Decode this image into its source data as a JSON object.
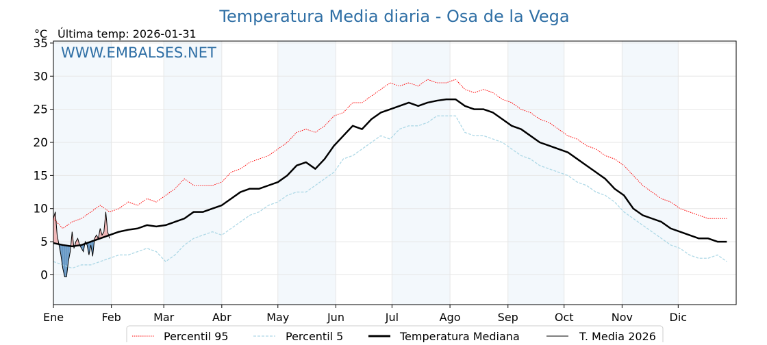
{
  "chart_data": {
    "type": "line",
    "title": "Temperatura Media diaria - Osa de la Vega",
    "unit_label": "°C",
    "subtitle": "Última temp: 2026-01-31",
    "watermark": "WWW.EMBALSES.NET",
    "ylim": [
      -4.5,
      35.3
    ],
    "yticks": [
      0,
      5,
      10,
      15,
      20,
      25,
      30,
      35
    ],
    "xlim_days": [
      0,
      365
    ],
    "month_labels": [
      "Ene",
      "Feb",
      "Mar",
      "Abr",
      "May",
      "Jun",
      "Jul",
      "Ago",
      "Sep",
      "Oct",
      "Nov",
      "Dic"
    ],
    "month_start_days": [
      0,
      31,
      59,
      90,
      120,
      151,
      181,
      212,
      243,
      273,
      304,
      334
    ],
    "grid": true,
    "legend_position": "bottom-center",
    "sample_step_days": 5,
    "series": [
      {
        "name": "Percentil 95",
        "color": "#ff0000",
        "style": "dotted",
        "values": [
          8.5,
          7,
          8,
          8.5,
          9.5,
          10.5,
          9.5,
          10,
          11,
          10.5,
          11.5,
          11,
          12,
          13,
          14.5,
          13.5,
          13.5,
          13.5,
          14,
          15.5,
          16,
          17,
          17.5,
          18,
          19,
          20,
          21.5,
          22,
          21.5,
          22.5,
          24,
          24.5,
          26,
          26,
          27,
          28,
          29,
          28.5,
          29,
          28.5,
          29.5,
          29,
          29,
          29.5,
          28,
          27.5,
          28,
          27.5,
          26.5,
          26,
          25,
          24.5,
          23.5,
          23,
          22,
          21,
          20.5,
          19.5,
          19,
          18,
          17.5,
          16.5,
          15,
          13.5,
          12.5,
          11.5,
          11,
          10,
          9.5,
          9,
          8.5,
          8.5,
          8.5
        ]
      },
      {
        "name": "Percentil 5",
        "color": "#add8e6",
        "style": "dashed",
        "values": [
          2,
          1.5,
          1,
          1.5,
          1.5,
          2,
          2.5,
          3,
          3,
          3.5,
          4,
          3.5,
          2,
          3,
          4.5,
          5.5,
          6,
          6.5,
          6,
          7,
          8,
          9,
          9.5,
          10.5,
          11,
          12,
          12.5,
          12.5,
          13.5,
          14.5,
          15.5,
          17.5,
          18,
          19,
          20,
          21,
          20.5,
          22,
          22.5,
          22.5,
          23,
          24,
          24,
          24,
          21.5,
          21,
          21,
          20.5,
          20,
          19,
          18,
          17.5,
          16.5,
          16,
          15.5,
          15,
          14,
          13.5,
          12.5,
          12,
          11,
          9.5,
          8.5,
          7.5,
          6.5,
          5.5,
          4.5,
          4,
          3,
          2.5,
          2.5,
          3,
          2
        ]
      },
      {
        "name": "Temperatura Mediana",
        "color": "#000000",
        "style": "solid-thick",
        "values": [
          4.8,
          4.5,
          4.3,
          4.5,
          5,
          5.5,
          6,
          6.5,
          6.8,
          7,
          7.5,
          7.3,
          7.5,
          8,
          8.5,
          9.5,
          9.5,
          10,
          10.5,
          11.5,
          12.5,
          13,
          13,
          13.5,
          14,
          15,
          16.5,
          17,
          16,
          17.5,
          19.5,
          21,
          22.5,
          22,
          23.5,
          24.5,
          25,
          25.5,
          26,
          25.5,
          26,
          26.3,
          26.5,
          26.5,
          25.5,
          25,
          25,
          24.5,
          23.5,
          22.5,
          22,
          21,
          20,
          19.5,
          19,
          18.5,
          17.5,
          16.5,
          15.5,
          14.5,
          13,
          12,
          10,
          9,
          8.5,
          8,
          7,
          6.5,
          6,
          5.5,
          5.5,
          5,
          5
        ]
      },
      {
        "name": "T. Media 2026",
        "color": "#000000",
        "style": "solid-thin",
        "values": [
          8.5,
          9.5,
          6,
          4.5,
          3,
          1,
          -0.3,
          -0.3,
          2,
          3.5,
          6.5,
          4,
          5,
          5.5,
          4.5,
          4,
          3.5,
          5,
          4.5,
          3,
          4.5,
          2.8,
          5.5,
          6,
          5.5,
          7,
          6,
          6.5,
          9.5,
          6.5,
          5.5
        ]
      }
    ]
  }
}
